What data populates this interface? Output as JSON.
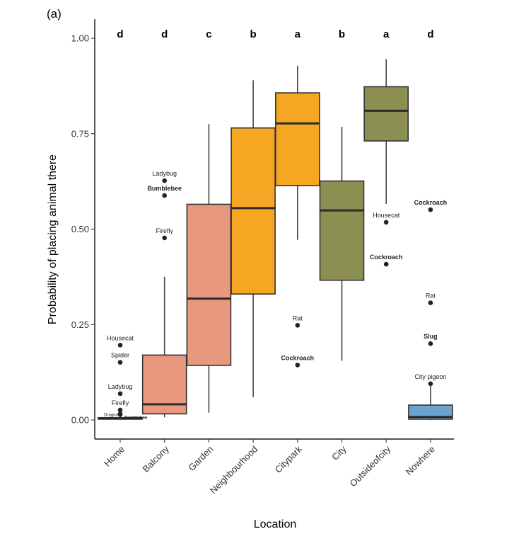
{
  "chart_data": {
    "type": "boxplot",
    "panel_label": "(a)",
    "xlabel": "Location",
    "ylabel": "Probability of placing animal there",
    "ylim": [
      -0.05,
      1.05
    ],
    "yticks": [
      "0.00",
      "0.25",
      "0.50",
      "0.75",
      "1.00"
    ],
    "ytick_values": [
      0,
      0.25,
      0.5,
      0.75,
      1.0
    ],
    "categories": [
      "Home",
      "Balcony",
      "Garden",
      "Neighbourhood",
      "Citypark",
      "City",
      "Outsideofcity",
      "Nowhere"
    ],
    "letters": [
      "d",
      "d",
      "c",
      "b",
      "a",
      "b",
      "a",
      "d"
    ],
    "colors": [
      "#e8987c",
      "#e8987c",
      "#e8987c",
      "#f5a623",
      "#f5a623",
      "#8b8f52",
      "#8b8f52",
      "#6fa3cf"
    ],
    "boxes": [
      {
        "category": "Home",
        "q1": 0.002,
        "median": 0.004,
        "q3": 0.006,
        "lower": 0.002,
        "upper": 0.006,
        "color": "#e8987c",
        "outliers": [
          {
            "value": 0.196,
            "label": "Housecat",
            "bold": false
          },
          {
            "value": 0.151,
            "label": "Spider",
            "bold": false
          },
          {
            "value": 0.069,
            "label": "Ladybug",
            "bold": false
          },
          {
            "value": 0.026,
            "label": "Firefly",
            "bold": false
          },
          {
            "value": 0.016,
            "label": "Dragonfly",
            "bold": false
          },
          {
            "value": 0.014,
            "label": "Bumblebee",
            "bold": true
          }
        ]
      },
      {
        "category": "Balcony",
        "q1": 0.016,
        "median": 0.041,
        "q3": 0.17,
        "lower": 0.007,
        "upper": 0.375,
        "color": "#e8987c",
        "outliers": [
          {
            "value": 0.627,
            "label": "Ladybug",
            "bold": false
          },
          {
            "value": 0.588,
            "label": "Bumblebee",
            "bold": true
          },
          {
            "value": 0.477,
            "label": "Firefly",
            "bold": false
          }
        ]
      },
      {
        "category": "Garden",
        "q1": 0.143,
        "median": 0.318,
        "q3": 0.565,
        "lower": 0.019,
        "upper": 0.775,
        "color": "#e8987c",
        "outliers": []
      },
      {
        "category": "Neighbourhood",
        "q1": 0.33,
        "median": 0.555,
        "q3": 0.765,
        "lower": 0.06,
        "upper": 0.89,
        "color": "#f5a623",
        "outliers": []
      },
      {
        "category": "Citypark",
        "q1": 0.614,
        "median": 0.777,
        "q3": 0.857,
        "lower": 0.472,
        "upper": 0.928,
        "color": "#f5a623",
        "outliers": [
          {
            "value": 0.248,
            "label": "Rat",
            "bold": false
          },
          {
            "value": 0.144,
            "label": "Cockroach",
            "bold": true
          }
        ]
      },
      {
        "category": "City",
        "q1": 0.366,
        "median": 0.549,
        "q3": 0.626,
        "lower": 0.155,
        "upper": 0.768,
        "color": "#8b8f52",
        "outliers": []
      },
      {
        "category": "Outsideofcity",
        "q1": 0.731,
        "median": 0.81,
        "q3": 0.873,
        "lower": 0.566,
        "upper": 0.945,
        "color": "#8b8f52",
        "outliers": [
          {
            "value": 0.518,
            "label": "Housecat",
            "bold": false
          },
          {
            "value": 0.408,
            "label": "Cockroach",
            "bold": true
          }
        ]
      },
      {
        "category": "Nowhere",
        "q1": 0.002,
        "median": 0.008,
        "q3": 0.039,
        "lower": 0.0,
        "upper": 0.097,
        "color": "#6fa3cf",
        "outliers": [
          {
            "value": 0.551,
            "label": "Cockroach",
            "bold": true
          },
          {
            "value": 0.307,
            "label": "Rat",
            "bold": false
          },
          {
            "value": 0.2,
            "label": "Slug",
            "bold": true
          },
          {
            "value": 0.095,
            "label": "City pigeon",
            "bold": false
          }
        ]
      }
    ],
    "grid": false,
    "legend": "none"
  }
}
